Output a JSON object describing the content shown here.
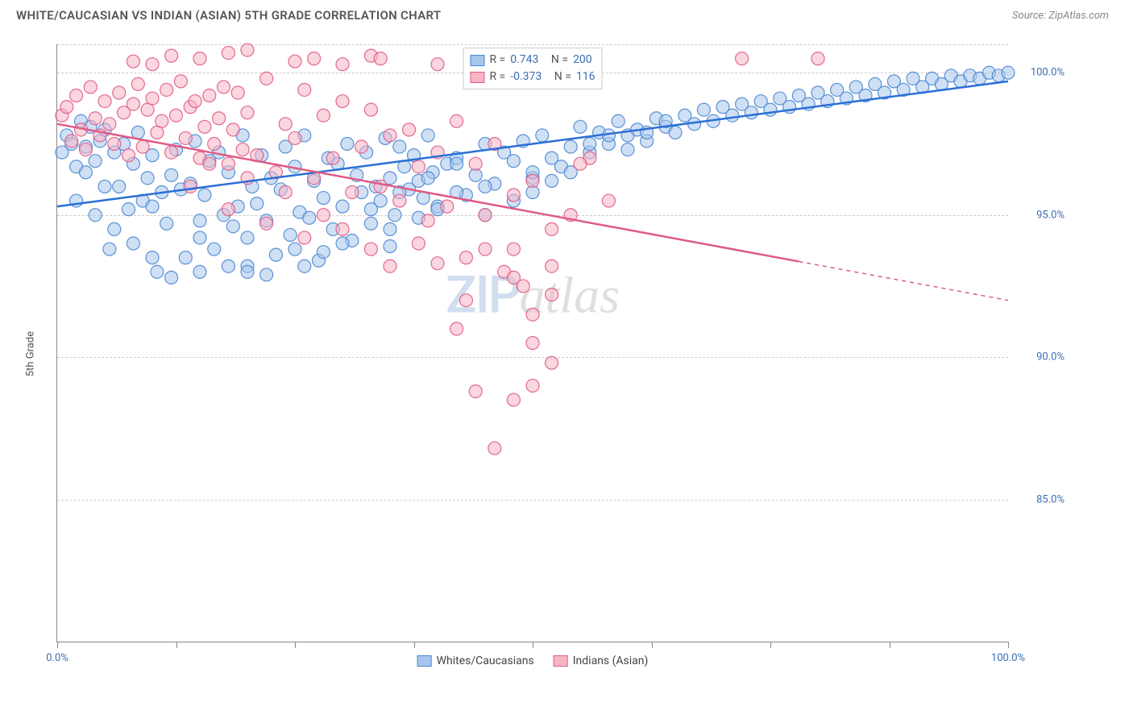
{
  "header": {
    "title": "WHITE/CAUCASIAN VS INDIAN (ASIAN) 5TH GRADE CORRELATION CHART",
    "source": "Source: ZipAtlas.com"
  },
  "chart": {
    "type": "scatter",
    "ylabel": "5th Grade",
    "xlim": [
      0,
      100
    ],
    "ylim": [
      80,
      101
    ],
    "ytick_step": 5,
    "yticks": [
      85.0,
      90.0,
      95.0,
      100.0
    ],
    "ytick_labels": [
      "85.0%",
      "90.0%",
      "95.0%",
      "100.0%"
    ],
    "xticks": [
      0,
      12.5,
      25,
      37.5,
      50,
      62.5,
      75,
      87.5,
      100
    ],
    "xtick_labels_shown": {
      "0": "0.0%",
      "100": "100.0%"
    },
    "background_color": "#ffffff",
    "grid_color": "#cccccc",
    "axis_color": "#888888",
    "marker_radius": 8,
    "marker_opacity": 0.55,
    "marker_stroke_opacity": 0.9,
    "line_width": 2.5,
    "series": [
      {
        "name": "Whites/Caucasians",
        "color_fill": "#a7c6ed",
        "color_stroke": "#4a86d0",
        "line_color": "#2a6fd6",
        "R": "0.743",
        "N": "200",
        "regression": {
          "x1": 0,
          "y1": 95.3,
          "x2": 100,
          "y2": 99.7
        },
        "regression_dashed_from": null,
        "points": [
          [
            0.5,
            97.2
          ],
          [
            1,
            97.8
          ],
          [
            1.5,
            97.5
          ],
          [
            2,
            96.7
          ],
          [
            2.5,
            98.3
          ],
          [
            3,
            97.4
          ],
          [
            3.5,
            98.1
          ],
          [
            4,
            96.9
          ],
          [
            4.5,
            97.6
          ],
          [
            5,
            98.0
          ],
          [
            5.5,
            93.8
          ],
          [
            6,
            97.2
          ],
          [
            6.5,
            96.0
          ],
          [
            7,
            97.5
          ],
          [
            7.5,
            95.2
          ],
          [
            8,
            96.8
          ],
          [
            8.5,
            97.9
          ],
          [
            9,
            95.5
          ],
          [
            9.5,
            96.3
          ],
          [
            10,
            97.1
          ],
          [
            10.5,
            93.0
          ],
          [
            11,
            95.8
          ],
          [
            11.5,
            94.7
          ],
          [
            12,
            96.4
          ],
          [
            12.5,
            97.3
          ],
          [
            13,
            95.9
          ],
          [
            13.5,
            93.5
          ],
          [
            14,
            96.1
          ],
          [
            14.5,
            97.6
          ],
          [
            15,
            94.2
          ],
          [
            15.5,
            95.7
          ],
          [
            16,
            96.9
          ],
          [
            16.5,
            93.8
          ],
          [
            17,
            97.2
          ],
          [
            17.5,
            95.0
          ],
          [
            18,
            96.5
          ],
          [
            18.5,
            94.6
          ],
          [
            19,
            95.3
          ],
          [
            19.5,
            97.8
          ],
          [
            20,
            93.2
          ],
          [
            20.5,
            96.0
          ],
          [
            21,
            95.4
          ],
          [
            21.5,
            97.1
          ],
          [
            22,
            94.8
          ],
          [
            22.5,
            96.3
          ],
          [
            23,
            93.6
          ],
          [
            23.5,
            95.9
          ],
          [
            24,
            97.4
          ],
          [
            24.5,
            94.3
          ],
          [
            25,
            96.7
          ],
          [
            25.5,
            95.1
          ],
          [
            26,
            97.8
          ],
          [
            26.5,
            94.9
          ],
          [
            27,
            96.2
          ],
          [
            27.5,
            93.4
          ],
          [
            28,
            95.6
          ],
          [
            28.5,
            97.0
          ],
          [
            29,
            94.5
          ],
          [
            29.5,
            96.8
          ],
          [
            30,
            95.3
          ],
          [
            30.5,
            97.5
          ],
          [
            31,
            94.1
          ],
          [
            31.5,
            96.4
          ],
          [
            32,
            95.8
          ],
          [
            32.5,
            97.2
          ],
          [
            33,
            94.7
          ],
          [
            33.5,
            96.0
          ],
          [
            34,
            95.5
          ],
          [
            34.5,
            97.7
          ],
          [
            35,
            96.3
          ],
          [
            35.5,
            95.0
          ],
          [
            36,
            97.4
          ],
          [
            36.5,
            96.7
          ],
          [
            37,
            95.9
          ],
          [
            37.5,
            97.1
          ],
          [
            38,
            96.2
          ],
          [
            38.5,
            95.6
          ],
          [
            39,
            97.8
          ],
          [
            39.5,
            96.5
          ],
          [
            40,
            95.3
          ],
          [
            41,
            96.8
          ],
          [
            42,
            97.0
          ],
          [
            43,
            95.7
          ],
          [
            44,
            96.4
          ],
          [
            45,
            97.5
          ],
          [
            46,
            96.1
          ],
          [
            47,
            97.2
          ],
          [
            48,
            96.9
          ],
          [
            49,
            97.6
          ],
          [
            50,
            96.3
          ],
          [
            51,
            97.8
          ],
          [
            52,
            97.0
          ],
          [
            53,
            96.7
          ],
          [
            54,
            97.4
          ],
          [
            55,
            98.1
          ],
          [
            56,
            97.2
          ],
          [
            57,
            97.9
          ],
          [
            58,
            97.5
          ],
          [
            59,
            98.3
          ],
          [
            60,
            97.8
          ],
          [
            61,
            98.0
          ],
          [
            62,
            97.6
          ],
          [
            63,
            98.4
          ],
          [
            64,
            98.1
          ],
          [
            65,
            97.9
          ],
          [
            66,
            98.5
          ],
          [
            67,
            98.2
          ],
          [
            68,
            98.7
          ],
          [
            69,
            98.3
          ],
          [
            70,
            98.8
          ],
          [
            71,
            98.5
          ],
          [
            72,
            98.9
          ],
          [
            73,
            98.6
          ],
          [
            74,
            99.0
          ],
          [
            75,
            98.7
          ],
          [
            76,
            99.1
          ],
          [
            77,
            98.8
          ],
          [
            78,
            99.2
          ],
          [
            79,
            98.9
          ],
          [
            80,
            99.3
          ],
          [
            81,
            99.0
          ],
          [
            82,
            99.4
          ],
          [
            83,
            99.1
          ],
          [
            84,
            99.5
          ],
          [
            85,
            99.2
          ],
          [
            86,
            99.6
          ],
          [
            87,
            99.3
          ],
          [
            88,
            99.7
          ],
          [
            89,
            99.4
          ],
          [
            90,
            99.8
          ],
          [
            91,
            99.5
          ],
          [
            92,
            99.8
          ],
          [
            93,
            99.6
          ],
          [
            94,
            99.9
          ],
          [
            95,
            99.7
          ],
          [
            96,
            99.9
          ],
          [
            97,
            99.8
          ],
          [
            98,
            100.0
          ],
          [
            99,
            99.9
          ],
          [
            100,
            100.0
          ],
          [
            45,
            95.0
          ],
          [
            42,
            95.8
          ],
          [
            38,
            94.9
          ],
          [
            35,
            93.9
          ],
          [
            28,
            93.7
          ],
          [
            26,
            93.2
          ],
          [
            22,
            92.9
          ],
          [
            20,
            93.0
          ],
          [
            18,
            93.2
          ],
          [
            15,
            93.0
          ],
          [
            12,
            92.8
          ],
          [
            10,
            93.5
          ],
          [
            8,
            94.0
          ],
          [
            6,
            94.5
          ],
          [
            4,
            95.0
          ],
          [
            2,
            95.5
          ],
          [
            48,
            95.5
          ],
          [
            50,
            95.8
          ],
          [
            52,
            96.2
          ],
          [
            54,
            96.5
          ],
          [
            56,
            97.5
          ],
          [
            58,
            97.8
          ],
          [
            35,
            94.5
          ],
          [
            30,
            94.0
          ],
          [
            25,
            93.8
          ],
          [
            20,
            94.2
          ],
          [
            15,
            94.8
          ],
          [
            10,
            95.3
          ],
          [
            5,
            96.0
          ],
          [
            3,
            96.5
          ],
          [
            40,
            95.2
          ],
          [
            45,
            96.0
          ],
          [
            50,
            96.5
          ],
          [
            33,
            95.2
          ],
          [
            36,
            95.8
          ],
          [
            39,
            96.3
          ],
          [
            42,
            96.8
          ],
          [
            60,
            97.3
          ],
          [
            62,
            97.9
          ],
          [
            64,
            98.3
          ]
        ]
      },
      {
        "name": "Indians (Asian)",
        "color_fill": "#f5b5c5",
        "color_stroke": "#e05a85",
        "line_color": "#e05a85",
        "R": "-0.373",
        "N": "116",
        "regression": {
          "x1": 0,
          "y1": 98.2,
          "x2": 100,
          "y2": 92.0
        },
        "regression_dashed_from": 78,
        "points": [
          [
            0.5,
            98.5
          ],
          [
            1,
            98.8
          ],
          [
            1.5,
            97.6
          ],
          [
            2,
            99.2
          ],
          [
            2.5,
            98.0
          ],
          [
            3,
            97.3
          ],
          [
            3.5,
            99.5
          ],
          [
            4,
            98.4
          ],
          [
            4.5,
            97.8
          ],
          [
            5,
            99.0
          ],
          [
            5.5,
            98.2
          ],
          [
            6,
            97.5
          ],
          [
            6.5,
            99.3
          ],
          [
            7,
            98.6
          ],
          [
            7.5,
            97.1
          ],
          [
            8,
            98.9
          ],
          [
            8.5,
            99.6
          ],
          [
            9,
            97.4
          ],
          [
            9.5,
            98.7
          ],
          [
            10,
            99.1
          ],
          [
            10.5,
            97.9
          ],
          [
            11,
            98.3
          ],
          [
            11.5,
            99.4
          ],
          [
            12,
            97.2
          ],
          [
            12.5,
            98.5
          ],
          [
            13,
            99.7
          ],
          [
            13.5,
            97.7
          ],
          [
            14,
            98.8
          ],
          [
            14.5,
            99.0
          ],
          [
            15,
            97.0
          ],
          [
            15.5,
            98.1
          ],
          [
            16,
            99.2
          ],
          [
            16.5,
            97.5
          ],
          [
            17,
            98.4
          ],
          [
            17.5,
            99.5
          ],
          [
            18,
            96.8
          ],
          [
            18.5,
            98.0
          ],
          [
            19,
            99.3
          ],
          [
            19.5,
            97.3
          ],
          [
            20,
            98.6
          ],
          [
            21,
            97.1
          ],
          [
            22,
            99.8
          ],
          [
            23,
            96.5
          ],
          [
            24,
            98.2
          ],
          [
            25,
            97.7
          ],
          [
            26,
            99.4
          ],
          [
            27,
            96.3
          ],
          [
            28,
            98.5
          ],
          [
            29,
            97.0
          ],
          [
            30,
            99.0
          ],
          [
            31,
            95.8
          ],
          [
            32,
            97.4
          ],
          [
            33,
            98.7
          ],
          [
            34,
            96.0
          ],
          [
            35,
            97.8
          ],
          [
            36,
            95.5
          ],
          [
            37,
            98.0
          ],
          [
            38,
            96.7
          ],
          [
            39,
            94.8
          ],
          [
            40,
            97.2
          ],
          [
            41,
            95.3
          ],
          [
            42,
            98.3
          ],
          [
            43,
            93.5
          ],
          [
            44,
            96.8
          ],
          [
            45,
            95.0
          ],
          [
            46,
            97.5
          ],
          [
            47,
            93.0
          ],
          [
            48,
            95.7
          ],
          [
            49,
            92.5
          ],
          [
            50,
            96.2
          ],
          [
            27,
            100.5
          ],
          [
            30,
            100.3
          ],
          [
            33,
            100.6
          ],
          [
            20,
            100.8
          ],
          [
            25,
            100.4
          ],
          [
            15,
            100.5
          ],
          [
            18,
            100.7
          ],
          [
            10,
            100.3
          ],
          [
            12,
            100.6
          ],
          [
            8,
            100.4
          ],
          [
            52,
            94.5
          ],
          [
            45,
            93.8
          ],
          [
            48,
            92.8
          ],
          [
            50,
            91.5
          ],
          [
            43,
            92.0
          ],
          [
            40,
            93.3
          ],
          [
            38,
            94.0
          ],
          [
            35,
            93.2
          ],
          [
            33,
            93.8
          ],
          [
            30,
            94.5
          ],
          [
            28,
            95.0
          ],
          [
            26,
            94.2
          ],
          [
            24,
            95.8
          ],
          [
            22,
            94.7
          ],
          [
            20,
            96.3
          ],
          [
            18,
            95.2
          ],
          [
            16,
            96.8
          ],
          [
            14,
            96.0
          ],
          [
            34,
            100.5
          ],
          [
            40,
            100.3
          ],
          [
            46,
            86.8
          ],
          [
            48,
            88.5
          ],
          [
            50,
            89.0
          ],
          [
            52,
            89.8
          ],
          [
            54,
            95.0
          ],
          [
            52,
            93.2
          ],
          [
            56,
            97.0
          ],
          [
            58,
            95.5
          ],
          [
            72,
            100.5
          ],
          [
            80,
            100.5
          ],
          [
            44,
            88.8
          ],
          [
            42,
            91.0
          ],
          [
            50,
            90.5
          ],
          [
            55,
            96.8
          ],
          [
            52,
            92.2
          ],
          [
            48,
            93.8
          ]
        ]
      }
    ],
    "legend_top": {
      "R_label": "R =",
      "N_label": "N ="
    },
    "legend_bottom": [
      {
        "label": "Whites/Caucasians",
        "fill": "#a7c6ed",
        "stroke": "#4a86d0"
      },
      {
        "label": "Indians (Asian)",
        "fill": "#f5b5c5",
        "stroke": "#e05a85"
      }
    ],
    "watermark": {
      "part1": "ZIP",
      "part2": "atlas"
    }
  }
}
